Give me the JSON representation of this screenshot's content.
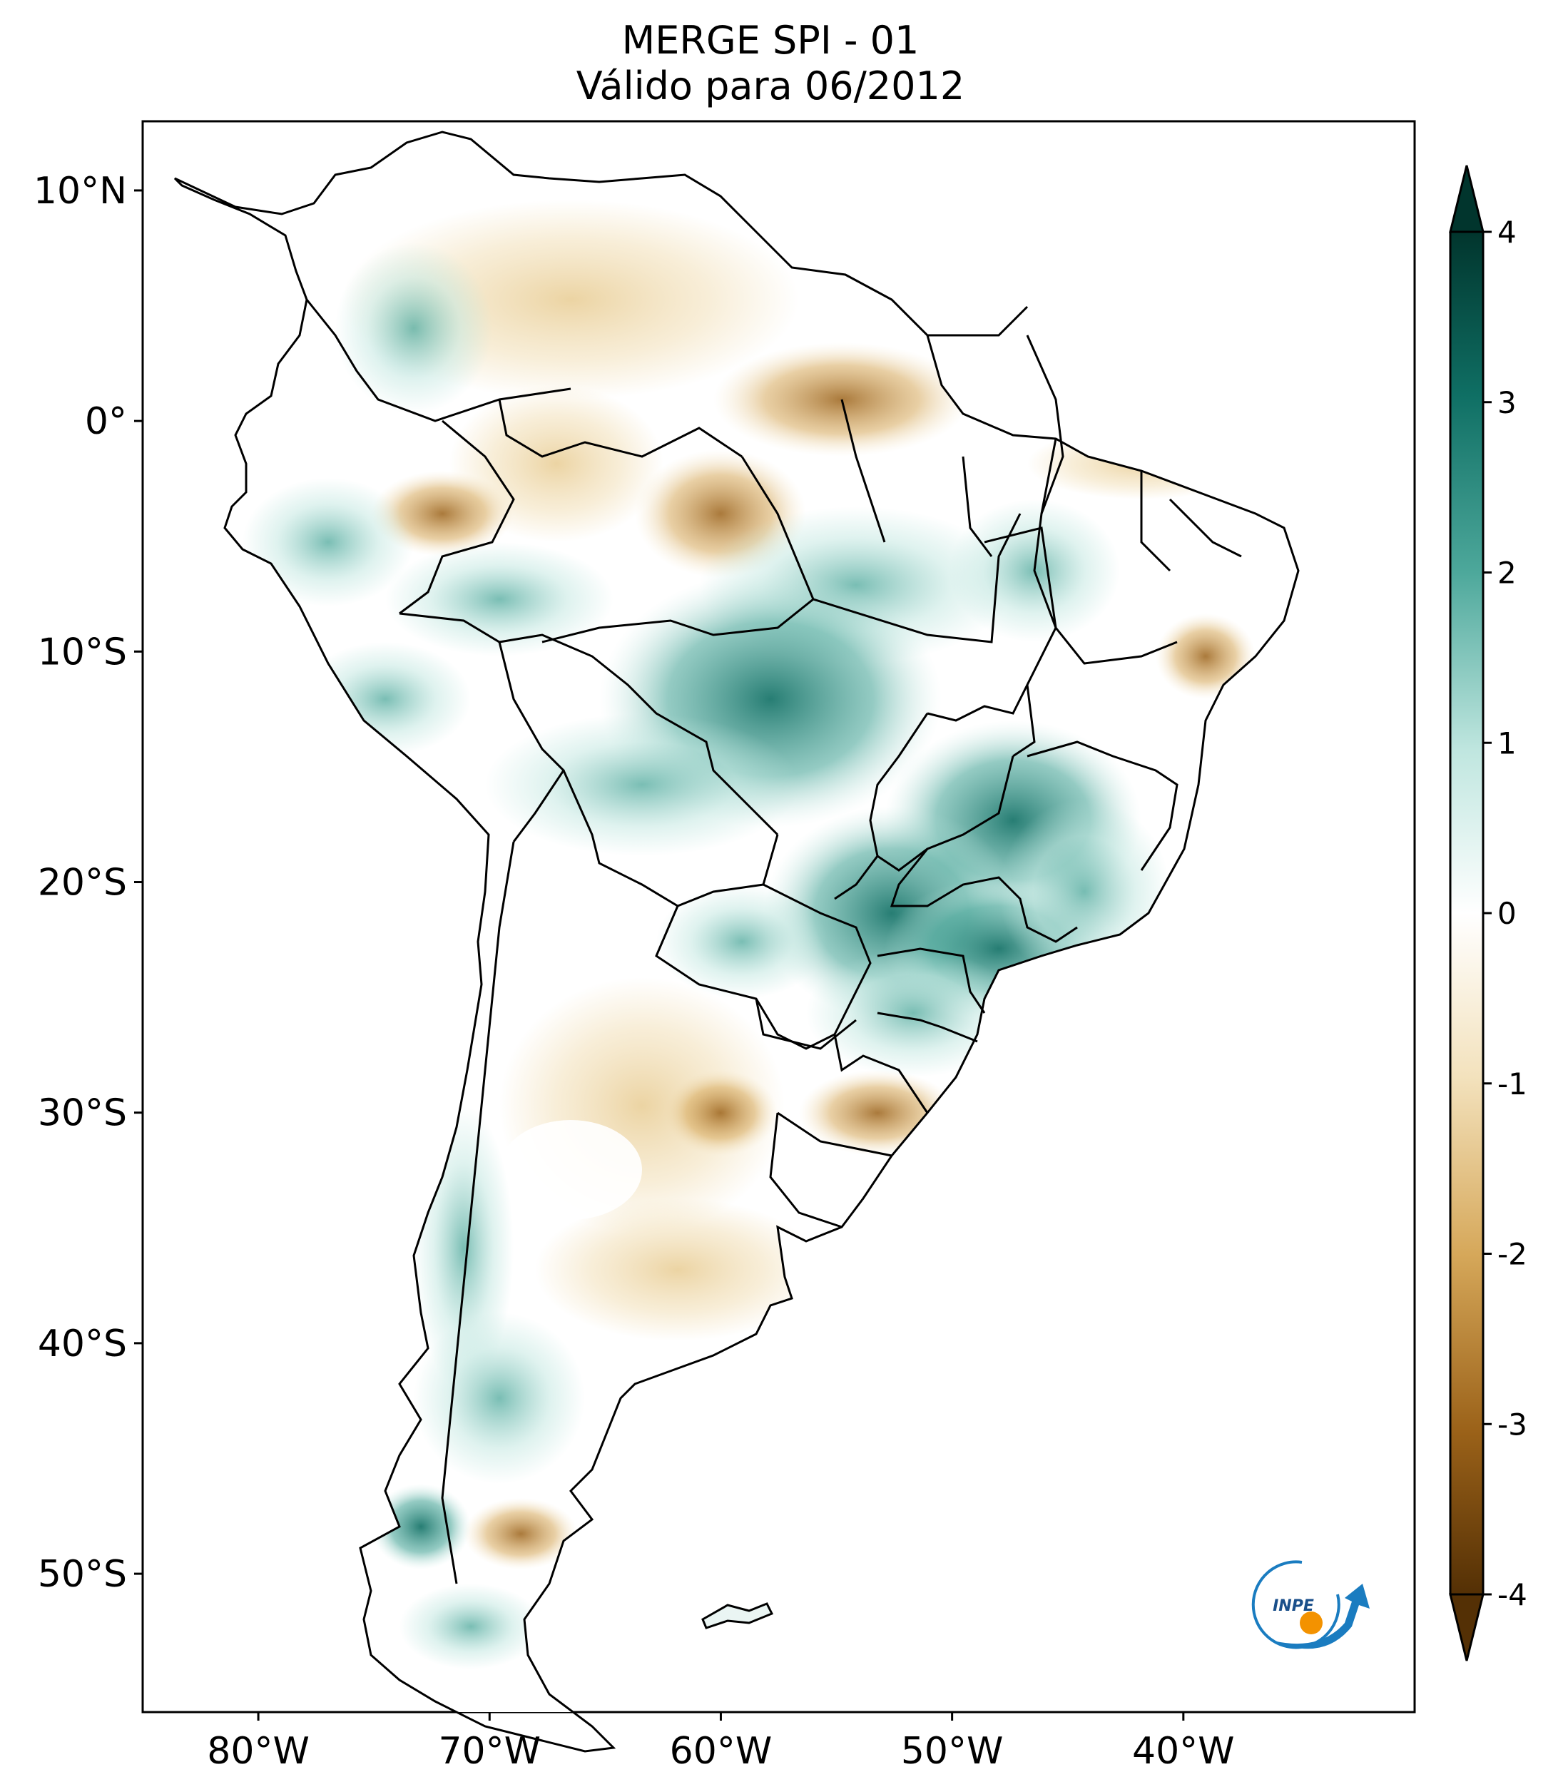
{
  "title": "MERGE   SPI - 01",
  "subtitle": "Válido para 06/2012",
  "map": {
    "lon_range": [
      -85,
      -30
    ],
    "lat_range": [
      -56,
      13
    ],
    "lat_ticks": [
      {
        "value": 10,
        "label": "10°N"
      },
      {
        "value": 0,
        "label": "0°"
      },
      {
        "value": -10,
        "label": "10°S"
      },
      {
        "value": -20,
        "label": "20°S"
      },
      {
        "value": -30,
        "label": "30°S"
      },
      {
        "value": -40,
        "label": "40°S"
      },
      {
        "value": -50,
        "label": "50°S"
      }
    ],
    "lon_ticks": [
      {
        "value": -80,
        "label": "80°W"
      },
      {
        "value": -70,
        "label": "70°W"
      },
      {
        "value": -60,
        "label": "60°W"
      },
      {
        "value": -50,
        "label": "50°W"
      },
      {
        "value": -40,
        "label": "40°W"
      }
    ]
  },
  "colorbar": {
    "min": -4,
    "max": 4,
    "ticks": [
      {
        "value": 4,
        "label": "4"
      },
      {
        "value": 3,
        "label": "3"
      },
      {
        "value": 2,
        "label": "2"
      },
      {
        "value": 1,
        "label": "1"
      },
      {
        "value": 0,
        "label": "0"
      },
      {
        "value": -1,
        "label": "-1"
      },
      {
        "value": -2,
        "label": "-2"
      },
      {
        "value": -3,
        "label": "-3"
      },
      {
        "value": -4,
        "label": "-4"
      }
    ],
    "colors": {
      "wet_extreme": "#01352d",
      "wet_strong": "#0f6f64",
      "wet_moderate": "#4da89b",
      "wet_light": "#bfe6df",
      "neutral": "#ffffff",
      "dry_light": "#f3e2bd",
      "dry_moderate": "#d6a85a",
      "dry_strong": "#9b6219",
      "dry_extreme": "#543005"
    }
  },
  "logo": {
    "text": "INPE",
    "colors": {
      "arc": "#1a7cc0",
      "dot": "#f39200"
    }
  }
}
